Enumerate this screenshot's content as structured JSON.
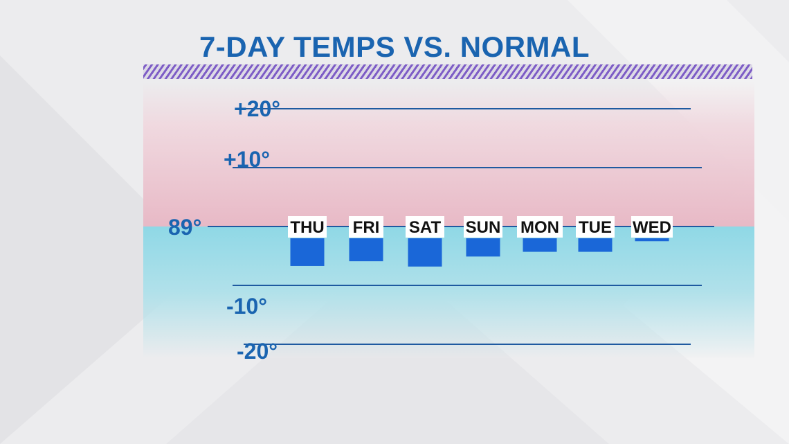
{
  "chart_data": {
    "type": "bar",
    "title": "7-DAY TEMPS VS. NORMAL",
    "baseline_label": "89°",
    "categories": [
      "THU",
      "FRI",
      "SAT",
      "SUN",
      "MON",
      "TUE",
      "WED"
    ],
    "values": [
      -6.7,
      -5.9,
      -6.8,
      -5.1,
      -4.3,
      -4.3,
      -2.5
    ],
    "ylim": [
      -20,
      20
    ],
    "ytick_values": [
      20,
      10,
      -10,
      -20
    ],
    "ytick_labels": [
      "+20°",
      "+10°",
      "-10°",
      "-20°"
    ],
    "grid": true,
    "legend": "none"
  },
  "colors": {
    "title": "#1a64b0",
    "bar": "#1a67d8",
    "gridline": "#1f5aa0",
    "above_normal_zone": "#e8b9c6",
    "below_normal_zone": "#8fd8e6",
    "hatch": "#7d5cc6"
  }
}
